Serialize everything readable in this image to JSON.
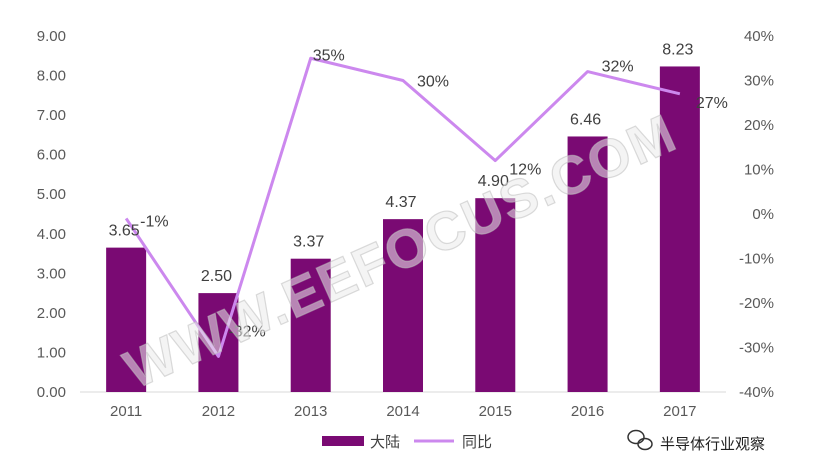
{
  "chart_data": {
    "type": "bar",
    "categories": [
      "2011",
      "2012",
      "2013",
      "2014",
      "2015",
      "2016",
      "2017"
    ],
    "series": [
      {
        "name": "大陆",
        "type": "bar",
        "axis": "left",
        "values": [
          3.65,
          2.5,
          3.37,
          4.37,
          4.9,
          6.46,
          8.23
        ],
        "labels": [
          "3.65",
          "2.50",
          "3.37",
          "4.37",
          "4.90",
          "6.46",
          "8.23"
        ],
        "color": "#7a0a73"
      },
      {
        "name": "同比",
        "type": "line",
        "axis": "right",
        "values": [
          -1,
          -32,
          35,
          30,
          12,
          32,
          27
        ],
        "labels": [
          "-1%",
          "-32%",
          "35%",
          "30%",
          "12%",
          "32%",
          "27%"
        ],
        "color": "#cc88ee"
      }
    ],
    "y_left": {
      "ylim": [
        0,
        9
      ],
      "ticks": [
        "0.00",
        "1.00",
        "2.00",
        "3.00",
        "4.00",
        "5.00",
        "6.00",
        "7.00",
        "8.00",
        "9.00"
      ]
    },
    "y_right": {
      "ylim": [
        -40,
        40
      ],
      "ticks": [
        "-40%",
        "-30%",
        "-20%",
        "-10%",
        "0%",
        "10%",
        "20%",
        "30%",
        "40%"
      ]
    },
    "legend_position": "bottom",
    "grid": false,
    "watermark": "WWW.EEFOCUS.COM",
    "source_watermark": "半导体行业观察"
  }
}
